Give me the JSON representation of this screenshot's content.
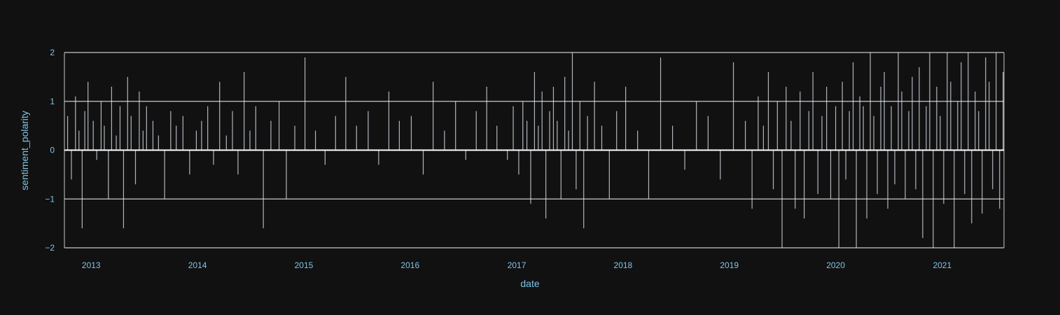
{
  "chart_data": {
    "type": "bar",
    "title": "",
    "xlabel": "date",
    "ylabel": "sentiment_polarity",
    "x_range": [
      "2012-10-01",
      "2021-08-01"
    ],
    "ylim": [
      -2,
      2
    ],
    "x_ticks": [
      "2013",
      "2014",
      "2015",
      "2016",
      "2017",
      "2018",
      "2019",
      "2020",
      "2021"
    ],
    "y_ticks": [
      -2,
      -1,
      0,
      1,
      2
    ],
    "y_tick_labels": [
      "−2",
      "−1",
      "0",
      "1",
      "2"
    ],
    "grid": true,
    "background": "#111111",
    "bar_color": "#e5ecf6",
    "axis_text_color": "#7fc4e8",
    "gridline_color": "#c8c8c8",
    "series": [
      {
        "dates": [
          "2012-10-12",
          "2012-10-25",
          "2012-11-08",
          "2012-11-20",
          "2012-12-01",
          "2012-12-10",
          "2012-12-21",
          "2013-01-08",
          "2013-01-20",
          "2013-02-04",
          "2013-02-15",
          "2013-03-01",
          "2013-03-12",
          "2013-03-28",
          "2013-04-10",
          "2013-04-22",
          "2013-05-06",
          "2013-05-18",
          "2013-06-02",
          "2013-06-15",
          "2013-06-28",
          "2013-07-10",
          "2013-08-01",
          "2013-08-20",
          "2013-09-10",
          "2013-10-01",
          "2013-10-20",
          "2013-11-12",
          "2013-12-05",
          "2013-12-28",
          "2014-01-15",
          "2014-02-05",
          "2014-02-25",
          "2014-03-18",
          "2014-04-10",
          "2014-05-01",
          "2014-05-20",
          "2014-06-10",
          "2014-06-30",
          "2014-07-20",
          "2014-08-15",
          "2014-09-10",
          "2014-10-08",
          "2014-11-02",
          "2014-12-01",
          "2015-01-05",
          "2015-02-10",
          "2015-03-15",
          "2015-04-20",
          "2015-05-25",
          "2015-07-01",
          "2015-08-10",
          "2015-09-15",
          "2015-10-20",
          "2015-11-25",
          "2016-01-05",
          "2016-02-15",
          "2016-03-20",
          "2016-04-28",
          "2016-06-05",
          "2016-07-10",
          "2016-08-15",
          "2016-09-20",
          "2016-10-25",
          "2016-11-30",
          "2016-12-20",
          "2017-01-08",
          "2017-01-22",
          "2017-02-05",
          "2017-02-18",
          "2017-03-03",
          "2017-03-16",
          "2017-03-29",
          "2017-04-11",
          "2017-04-24",
          "2017-05-07",
          "2017-05-20",
          "2017-06-02",
          "2017-06-15",
          "2017-06-28",
          "2017-07-11",
          "2017-07-24",
          "2017-08-06",
          "2017-08-19",
          "2017-09-01",
          "2017-09-25",
          "2017-10-20",
          "2017-11-15",
          "2017-12-10",
          "2018-01-10",
          "2018-02-20",
          "2018-03-30",
          "2018-05-10",
          "2018-06-20",
          "2018-08-01",
          "2018-09-10",
          "2018-10-20",
          "2018-12-01",
          "2019-01-15",
          "2019-02-25",
          "2019-03-20",
          "2019-04-10",
          "2019-04-28",
          "2019-05-15",
          "2019-06-01",
          "2019-06-15",
          "2019-07-01",
          "2019-07-15",
          "2019-08-01",
          "2019-08-15",
          "2019-09-01",
          "2019-09-15",
          "2019-10-01",
          "2019-10-15",
          "2019-11-01",
          "2019-11-15",
          "2019-12-01",
          "2019-12-15",
          "2020-01-01",
          "2020-01-12",
          "2020-01-24",
          "2020-02-05",
          "2020-02-17",
          "2020-03-01",
          "2020-03-12",
          "2020-03-24",
          "2020-04-05",
          "2020-04-17",
          "2020-04-29",
          "2020-05-11",
          "2020-05-23",
          "2020-06-04",
          "2020-06-16",
          "2020-06-28",
          "2020-07-10",
          "2020-07-22",
          "2020-08-03",
          "2020-08-15",
          "2020-08-27",
          "2020-09-08",
          "2020-09-20",
          "2020-10-02",
          "2020-10-14",
          "2020-10-26",
          "2020-11-07",
          "2020-11-19",
          "2020-12-01",
          "2020-12-13",
          "2020-12-25",
          "2021-01-06",
          "2021-01-18",
          "2021-01-30",
          "2021-02-11",
          "2021-02-23",
          "2021-03-07",
          "2021-03-19",
          "2021-03-31",
          "2021-04-12",
          "2021-04-24",
          "2021-05-06",
          "2021-05-18",
          "2021-05-30",
          "2021-06-11",
          "2021-06-23",
          "2021-07-05",
          "2021-07-17",
          "2021-07-29"
        ],
        "values": [
          0.7,
          -0.6,
          1.1,
          0.4,
          -1.6,
          0.8,
          1.4,
          0.6,
          -0.2,
          1.0,
          0.5,
          -1.0,
          1.3,
          0.3,
          0.9,
          -1.6,
          1.5,
          0.7,
          -0.7,
          1.2,
          0.4,
          0.9,
          0.6,
          0.3,
          -1.0,
          0.8,
          0.5,
          0.7,
          -0.5,
          0.4,
          0.6,
          0.9,
          -0.3,
          1.4,
          0.3,
          0.8,
          -0.5,
          1.6,
          0.4,
          0.9,
          -1.6,
          0.6,
          1.0,
          -1.0,
          0.5,
          1.9,
          0.4,
          -0.3,
          0.7,
          1.5,
          0.5,
          0.8,
          -0.3,
          1.2,
          0.6,
          0.7,
          -0.5,
          1.4,
          0.4,
          1.0,
          -0.2,
          0.8,
          1.3,
          0.5,
          -0.2,
          0.9,
          -0.5,
          1.0,
          0.6,
          -1.1,
          1.6,
          0.5,
          1.2,
          -1.4,
          0.8,
          1.3,
          0.6,
          -1.0,
          1.5,
          0.4,
          2.0,
          -0.8,
          1.0,
          -1.6,
          0.7,
          1.4,
          0.5,
          -1.0,
          0.8,
          1.3,
          0.4,
          -1.0,
          1.9,
          0.5,
          -0.4,
          1.0,
          0.7,
          -0.6,
          1.8,
          0.6,
          -1.2,
          1.1,
          0.5,
          1.6,
          -0.8,
          1.0,
          -2.0,
          1.3,
          0.6,
          -1.2,
          1.2,
          -1.4,
          0.8,
          1.6,
          -0.9,
          0.7,
          1.3,
          -1.0,
          0.9,
          -2.0,
          1.4,
          -0.6,
          0.8,
          1.8,
          -2.0,
          1.1,
          0.9,
          -1.4,
          2.0,
          0.7,
          -0.9,
          1.3,
          1.6,
          -1.2,
          0.9,
          -0.7,
          2.0,
          1.2,
          -1.0,
          0.8,
          1.5,
          -0.8,
          1.7,
          -1.8,
          0.9,
          2.0,
          -2.0,
          1.3,
          0.7,
          -1.1,
          2.0,
          1.4,
          -2.0,
          1.0,
          1.8,
          -0.9,
          2.0,
          -1.5,
          1.2,
          0.8,
          -1.3,
          1.9,
          1.4,
          -0.8,
          2.0,
          -1.2,
          1.6
        ]
      }
    ]
  }
}
